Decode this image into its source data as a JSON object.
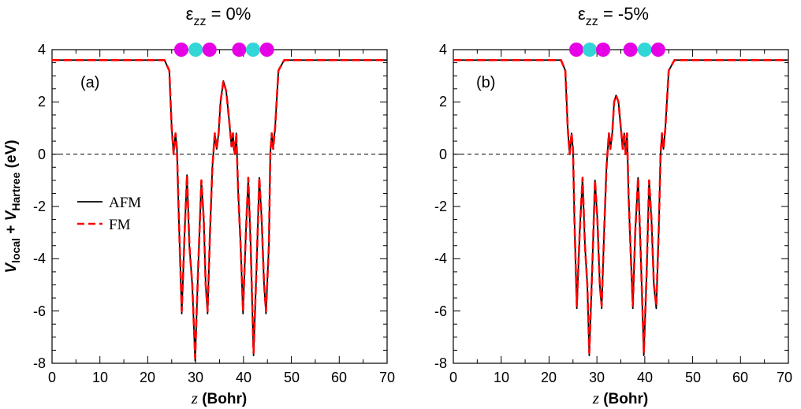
{
  "chart_data": [
    {
      "type": "line",
      "panel_label": "(a)",
      "title": {
        "prefix": "ε",
        "sub": "zz",
        "suffix": " = 0%"
      },
      "xlabel": {
        "italic": "z",
        "rest": " (Bohr)"
      },
      "ylabel": {
        "v1": "V",
        "s1": "local",
        "mid": " + ",
        "v2": "V",
        "s2": "Hartree",
        "unit": " (eV)"
      },
      "xlim": [
        0,
        70
      ],
      "ylim": [
        -8,
        4
      ],
      "x_ticks": [
        "0",
        "10",
        "20",
        "30",
        "40",
        "50",
        "60",
        "70"
      ],
      "y_ticks": [
        "-8",
        "-6",
        "-4",
        "-2",
        "0",
        "2",
        "4"
      ],
      "reference_line_y": 0,
      "legend": [
        "AFM",
        "FM"
      ],
      "atoms": [
        {
          "z": 27.0,
          "color": "#e600e6"
        },
        {
          "z": 30.0,
          "color": "#33d6d6"
        },
        {
          "z": 32.9,
          "color": "#e600e6"
        },
        {
          "z": 39.1,
          "color": "#e600e6"
        },
        {
          "z": 42.0,
          "color": "#33d6d6"
        },
        {
          "z": 44.9,
          "color": "#e600e6"
        }
      ],
      "series": [
        {
          "name": "AFM",
          "color": "#000000",
          "style": "solid",
          "points": [
            [
              0,
              3.6
            ],
            [
              23.5,
              3.6
            ],
            [
              24.5,
              3.2
            ],
            [
              25.0,
              1.0
            ],
            [
              25.4,
              0.0
            ],
            [
              25.8,
              0.8
            ],
            [
              26.1,
              0.2
            ],
            [
              26.5,
              -2.5
            ],
            [
              27.1,
              -6.1
            ],
            [
              27.7,
              -3.0
            ],
            [
              28.2,
              -0.8
            ],
            [
              28.7,
              -3.5
            ],
            [
              29.3,
              -5.0
            ],
            [
              29.9,
              -7.9
            ],
            [
              30.5,
              -4.5
            ],
            [
              31.2,
              -1.0
            ],
            [
              31.7,
              -2.5
            ],
            [
              32.1,
              -5.0
            ],
            [
              32.5,
              -6.1
            ],
            [
              33.0,
              -3.0
            ],
            [
              33.5,
              -0.5
            ],
            [
              34.0,
              0.8
            ],
            [
              34.4,
              0.2
            ],
            [
              34.8,
              0.8
            ],
            [
              35.2,
              2.0
            ],
            [
              35.8,
              2.8
            ],
            [
              36.4,
              2.4
            ],
            [
              37.0,
              1.3
            ],
            [
              37.5,
              0.3
            ],
            [
              37.8,
              0.8
            ],
            [
              38.0,
              0.2
            ],
            [
              38.2,
              0.0
            ],
            [
              38.5,
              0.8
            ],
            [
              38.9,
              -1.5
            ],
            [
              39.4,
              -3.5
            ],
            [
              39.9,
              -6.1
            ],
            [
              40.5,
              -3.0
            ],
            [
              41.0,
              -0.9
            ],
            [
              41.5,
              -3.5
            ],
            [
              42.1,
              -7.7
            ],
            [
              42.7,
              -4.5
            ],
            [
              43.3,
              -0.9
            ],
            [
              43.8,
              -2.5
            ],
            [
              44.3,
              -5.0
            ],
            [
              44.7,
              -6.1
            ],
            [
              45.3,
              -3.5
            ],
            [
              45.6,
              0.0
            ],
            [
              45.9,
              0.8
            ],
            [
              46.2,
              0.2
            ],
            [
              46.6,
              1.0
            ],
            [
              47.3,
              3.2
            ],
            [
              48.5,
              3.6
            ],
            [
              70,
              3.6
            ]
          ]
        },
        {
          "name": "FM",
          "color": "#ff0000",
          "style": "dashed",
          "points": [
            [
              0,
              3.6
            ],
            [
              23.5,
              3.6
            ],
            [
              24.5,
              3.2
            ],
            [
              25.0,
              1.0
            ],
            [
              25.4,
              0.0
            ],
            [
              25.8,
              0.8
            ],
            [
              26.1,
              0.2
            ],
            [
              26.5,
              -2.5
            ],
            [
              27.1,
              -6.0
            ],
            [
              27.7,
              -3.0
            ],
            [
              28.2,
              -0.8
            ],
            [
              28.7,
              -3.5
            ],
            [
              29.3,
              -5.0
            ],
            [
              29.9,
              -7.8
            ],
            [
              30.5,
              -4.5
            ],
            [
              31.2,
              -1.0
            ],
            [
              31.7,
              -2.5
            ],
            [
              32.1,
              -5.0
            ],
            [
              32.5,
              -6.0
            ],
            [
              33.0,
              -3.0
            ],
            [
              33.5,
              -0.5
            ],
            [
              34.0,
              0.8
            ],
            [
              34.4,
              0.2
            ],
            [
              34.8,
              0.8
            ],
            [
              35.2,
              2.0
            ],
            [
              35.8,
              2.8
            ],
            [
              36.4,
              2.4
            ],
            [
              37.0,
              1.3
            ],
            [
              37.5,
              0.3
            ],
            [
              37.8,
              0.8
            ],
            [
              38.0,
              0.2
            ],
            [
              38.2,
              0.0
            ],
            [
              38.5,
              0.8
            ],
            [
              38.9,
              -1.5
            ],
            [
              39.4,
              -3.5
            ],
            [
              39.9,
              -6.0
            ],
            [
              40.5,
              -3.0
            ],
            [
              41.0,
              -0.9
            ],
            [
              41.5,
              -3.5
            ],
            [
              42.1,
              -7.6
            ],
            [
              42.7,
              -4.5
            ],
            [
              43.3,
              -0.9
            ],
            [
              43.8,
              -2.5
            ],
            [
              44.3,
              -5.0
            ],
            [
              44.7,
              -6.0
            ],
            [
              45.3,
              -3.5
            ],
            [
              45.6,
              0.0
            ],
            [
              45.9,
              0.8
            ],
            [
              46.2,
              0.2
            ],
            [
              46.6,
              1.0
            ],
            [
              47.3,
              3.2
            ],
            [
              48.5,
              3.6
            ],
            [
              70,
              3.6
            ]
          ]
        }
      ]
    },
    {
      "type": "line",
      "panel_label": "(b)",
      "title": {
        "prefix": "ε",
        "sub": "zz",
        "suffix": " = -5%"
      },
      "xlabel": {
        "italic": "z",
        "rest": " (Bohr)"
      },
      "ylabel": null,
      "xlim": [
        0,
        70
      ],
      "ylim": [
        -8,
        4
      ],
      "x_ticks": [
        "0",
        "10",
        "20",
        "30",
        "40",
        "50",
        "60",
        "70"
      ],
      "y_ticks": [
        "-8",
        "-6",
        "-4",
        "-2",
        "0",
        "2",
        "4"
      ],
      "reference_line_y": 0,
      "legend": null,
      "atoms": [
        {
          "z": 25.7,
          "color": "#e600e6"
        },
        {
          "z": 28.5,
          "color": "#33d6d6"
        },
        {
          "z": 31.3,
          "color": "#e600e6"
        },
        {
          "z": 37.0,
          "color": "#e600e6"
        },
        {
          "z": 40.0,
          "color": "#33d6d6"
        },
        {
          "z": 42.8,
          "color": "#e600e6"
        }
      ],
      "series": [
        {
          "name": "AFM",
          "color": "#000000",
          "style": "solid",
          "points": [
            [
              0,
              3.6
            ],
            [
              22.5,
              3.6
            ],
            [
              23.4,
              3.2
            ],
            [
              23.9,
              1.0
            ],
            [
              24.3,
              0.0
            ],
            [
              24.7,
              0.8
            ],
            [
              25.0,
              0.2
            ],
            [
              25.3,
              -2.5
            ],
            [
              25.8,
              -5.9
            ],
            [
              26.4,
              -3.0
            ],
            [
              27.0,
              -0.9
            ],
            [
              27.5,
              -3.5
            ],
            [
              28.0,
              -5.0
            ],
            [
              28.4,
              -7.7
            ],
            [
              29.0,
              -4.5
            ],
            [
              29.6,
              -1.0
            ],
            [
              30.1,
              -2.5
            ],
            [
              30.6,
              -5.0
            ],
            [
              31.0,
              -5.9
            ],
            [
              31.5,
              -3.0
            ],
            [
              32.0,
              -0.5
            ],
            [
              32.5,
              0.8
            ],
            [
              32.8,
              0.2
            ],
            [
              33.2,
              0.8
            ],
            [
              33.6,
              2.0
            ],
            [
              34.0,
              2.25
            ],
            [
              34.5,
              2.0
            ],
            [
              35.0,
              1.0
            ],
            [
              35.4,
              0.2
            ],
            [
              35.7,
              0.8
            ],
            [
              36.0,
              0.0
            ],
            [
              36.3,
              0.8
            ],
            [
              36.6,
              -1.5
            ],
            [
              37.0,
              -3.5
            ],
            [
              37.5,
              -5.9
            ],
            [
              38.0,
              -3.0
            ],
            [
              38.6,
              -0.9
            ],
            [
              39.1,
              -3.5
            ],
            [
              39.8,
              -7.7
            ],
            [
              40.4,
              -4.5
            ],
            [
              40.9,
              -1.0
            ],
            [
              41.4,
              -2.5
            ],
            [
              41.9,
              -5.0
            ],
            [
              42.4,
              -5.9
            ],
            [
              42.9,
              -3.0
            ],
            [
              43.3,
              0.0
            ],
            [
              43.6,
              0.8
            ],
            [
              43.9,
              0.2
            ],
            [
              44.3,
              1.0
            ],
            [
              45.0,
              3.2
            ],
            [
              46.2,
              3.6
            ],
            [
              70,
              3.6
            ]
          ]
        },
        {
          "name": "FM",
          "color": "#ff0000",
          "style": "dashed",
          "points": [
            [
              0,
              3.6
            ],
            [
              22.5,
              3.6
            ],
            [
              23.4,
              3.2
            ],
            [
              23.9,
              1.0
            ],
            [
              24.3,
              0.0
            ],
            [
              24.7,
              0.8
            ],
            [
              25.0,
              0.2
            ],
            [
              25.3,
              -2.5
            ],
            [
              25.8,
              -5.8
            ],
            [
              26.4,
              -3.0
            ],
            [
              27.0,
              -0.9
            ],
            [
              27.5,
              -3.5
            ],
            [
              28.0,
              -5.0
            ],
            [
              28.4,
              -7.6
            ],
            [
              29.0,
              -4.5
            ],
            [
              29.6,
              -1.0
            ],
            [
              30.1,
              -2.5
            ],
            [
              30.6,
              -5.0
            ],
            [
              31.0,
              -5.8
            ],
            [
              31.5,
              -3.0
            ],
            [
              32.0,
              -0.5
            ],
            [
              32.5,
              0.8
            ],
            [
              32.8,
              0.2
            ],
            [
              33.2,
              0.8
            ],
            [
              33.6,
              2.0
            ],
            [
              34.0,
              2.25
            ],
            [
              34.5,
              2.0
            ],
            [
              35.0,
              1.0
            ],
            [
              35.4,
              0.2
            ],
            [
              35.7,
              0.8
            ],
            [
              36.0,
              0.0
            ],
            [
              36.3,
              0.8
            ],
            [
              36.6,
              -1.5
            ],
            [
              37.0,
              -3.5
            ],
            [
              37.5,
              -5.8
            ],
            [
              38.0,
              -3.0
            ],
            [
              38.6,
              -0.9
            ],
            [
              39.1,
              -3.5
            ],
            [
              39.8,
              -7.6
            ],
            [
              40.4,
              -4.5
            ],
            [
              40.9,
              -1.0
            ],
            [
              41.4,
              -2.5
            ],
            [
              41.9,
              -5.0
            ],
            [
              42.4,
              -5.8
            ],
            [
              42.9,
              -3.0
            ],
            [
              43.3,
              0.0
            ],
            [
              43.6,
              0.8
            ],
            [
              43.9,
              0.2
            ],
            [
              44.3,
              1.0
            ],
            [
              45.0,
              3.2
            ],
            [
              46.2,
              3.6
            ],
            [
              70,
              3.6
            ]
          ]
        }
      ]
    }
  ]
}
